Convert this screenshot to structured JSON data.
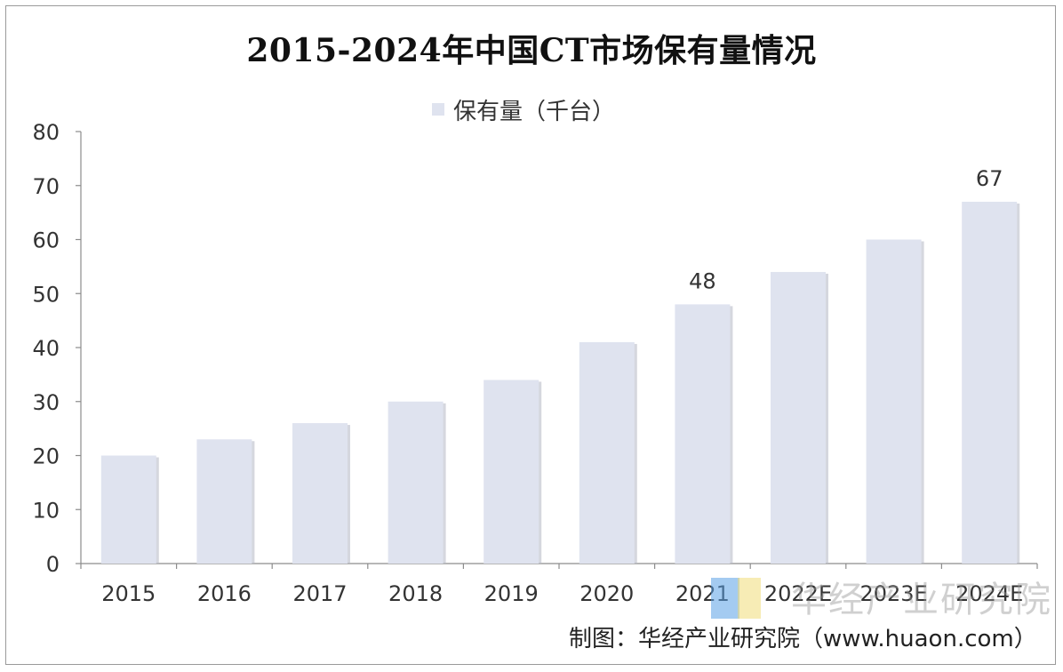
{
  "chart_data": {
    "type": "bar",
    "title": "2015-2024年中国CT市场保有量情况",
    "series": [
      {
        "name": "保有量（千台）",
        "values": [
          20,
          23,
          26,
          30,
          34,
          41,
          48,
          54,
          60,
          67
        ]
      }
    ],
    "categories": [
      "2015",
      "2016",
      "2017",
      "2018",
      "2019",
      "2020",
      "2021",
      "2022E",
      "2023E",
      "2024E"
    ],
    "data_labels": [
      {
        "category": "2021",
        "text": "48"
      },
      {
        "category": "2024E",
        "text": "67"
      }
    ],
    "xlabel": "",
    "ylabel": "",
    "ylim": [
      0,
      80
    ],
    "yticks": [
      "0",
      "10",
      "20",
      "30",
      "40",
      "50",
      "60",
      "70",
      "80"
    ],
    "grid": false,
    "legend_position": "top-center",
    "colors": {
      "bar": "#dfe3ef",
      "bar_shadow": "#b9bdc8",
      "axis": "#8c8c8c"
    }
  },
  "footer": {
    "source": "制图：华经产业研究院（www.huaon.com）"
  },
  "watermark": {
    "text": "华经产业研究院",
    "subtext": "huaon.com"
  }
}
